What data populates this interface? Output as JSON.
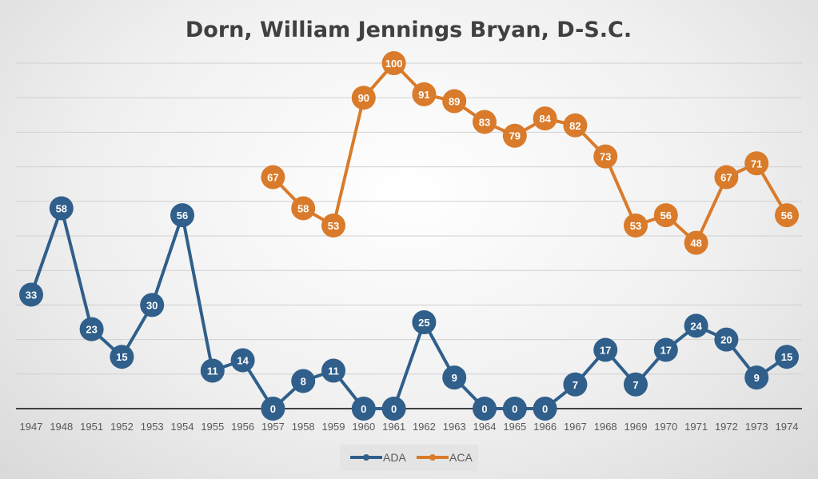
{
  "chart_data": {
    "type": "line",
    "title": "Dorn, William Jennings Bryan, D-S.C.",
    "categories": [
      "1947",
      "1948",
      "1951",
      "1952",
      "1953",
      "1954",
      "1955",
      "1956",
      "1957",
      "1958",
      "1959",
      "1960",
      "1961",
      "1962",
      "1963",
      "1964",
      "1965",
      "1966",
      "1967",
      "1968",
      "1969",
      "1970",
      "1971",
      "1972",
      "1973",
      "1974"
    ],
    "ylim": [
      0,
      100
    ],
    "grid": true,
    "legend": "bottom",
    "series": [
      {
        "name": "ADA",
        "color": "#2f5f8a",
        "values": [
          33,
          58,
          23,
          15,
          30,
          56,
          11,
          14,
          0,
          8,
          11,
          0,
          0,
          25,
          9,
          0,
          0,
          0,
          7,
          17,
          7,
          17,
          24,
          20,
          9,
          15
        ]
      },
      {
        "name": "ACA",
        "color": "#d97b2b",
        "values": [
          null,
          null,
          null,
          null,
          null,
          null,
          null,
          null,
          67,
          58,
          53,
          90,
          100,
          91,
          89,
          83,
          79,
          84,
          82,
          73,
          53,
          56,
          48,
          67,
          71,
          56
        ]
      }
    ]
  }
}
